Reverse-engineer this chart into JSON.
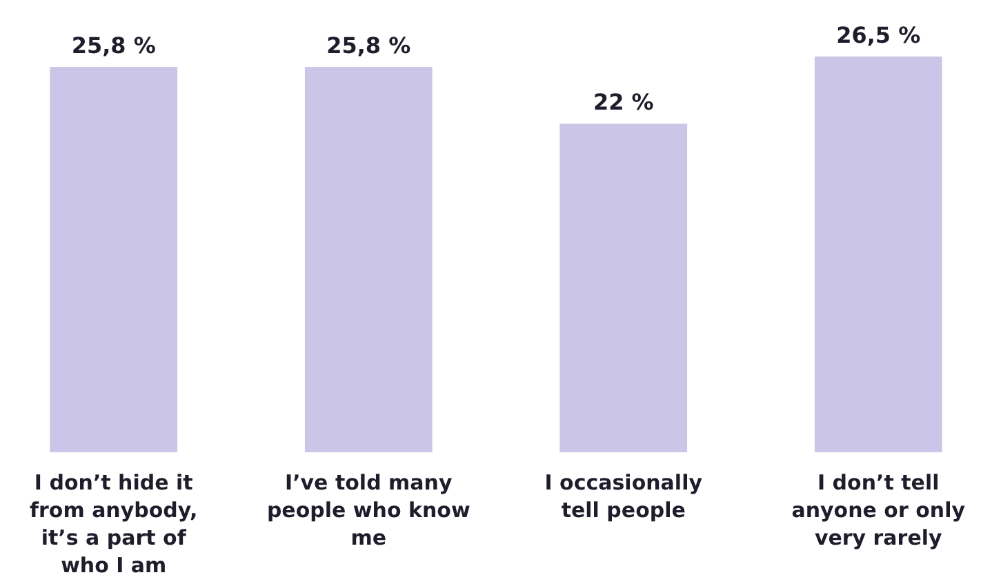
{
  "chart_data": {
    "type": "bar",
    "categories": [
      "I don’t hide it from anybody, it’s a part of who I am",
      "I’ve told many people who know me",
      "I occasionally tell people",
      "I don’t tell anyone or only very rarely"
    ],
    "values": [
      25.8,
      25.8,
      22,
      26.5
    ],
    "value_labels": [
      "25,8 %",
      "25,8 %",
      "22 %",
      "26,5 %"
    ],
    "color": "#cbc5e8"
  }
}
